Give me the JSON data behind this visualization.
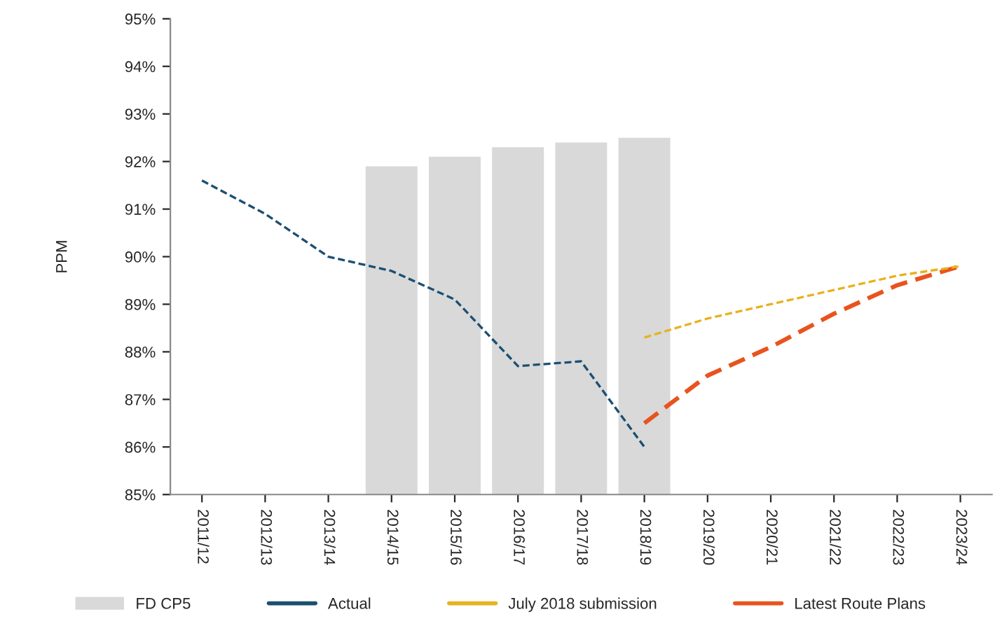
{
  "chart_data": {
    "type": "bar",
    "ylabel": "PPM",
    "categories": [
      "2011/12",
      "2012/13",
      "2013/14",
      "2014/15",
      "2015/16",
      "2016/17",
      "2017/18",
      "2018/19",
      "2019/20",
      "2020/21",
      "2021/22",
      "2022/23",
      "2023/24"
    ],
    "series": [
      {
        "name": "FD CP5",
        "color": "#d9d9d9",
        "values": [
          null,
          null,
          null,
          91.9,
          92.1,
          92.3,
          92.4,
          92.5,
          null,
          null,
          null,
          null,
          null
        ]
      },
      {
        "name": "Actual",
        "type": "line",
        "color": "#1b4f72",
        "line_style": "dashed",
        "values": [
          91.6,
          90.9,
          90.0,
          89.7,
          89.1,
          87.7,
          87.8,
          86.0,
          null,
          null,
          null,
          null,
          null
        ]
      },
      {
        "name": "July 2018 submission",
        "type": "line",
        "color": "#e8b21e",
        "line_style": "dashed",
        "values": [
          null,
          null,
          null,
          null,
          null,
          null,
          null,
          88.3,
          88.7,
          89.0,
          89.3,
          89.6,
          89.8
        ]
      },
      {
        "name": "Latest Route Plans",
        "type": "line",
        "color": "#e8541e",
        "line_style": "dashed",
        "values": [
          null,
          null,
          null,
          null,
          null,
          null,
          null,
          86.5,
          87.5,
          88.1,
          88.8,
          89.4,
          89.8
        ]
      }
    ],
    "ylim": [
      85,
      95
    ],
    "yticks": [
      {
        "value": 85,
        "label": "85%"
      },
      {
        "value": 86,
        "label": "86%"
      },
      {
        "value": 87,
        "label": "87%"
      },
      {
        "value": 88,
        "label": "88%"
      },
      {
        "value": 89,
        "label": "89%"
      },
      {
        "value": 90,
        "label": "90%"
      },
      {
        "value": 91,
        "label": "91%"
      },
      {
        "value": 92,
        "label": "92%"
      },
      {
        "value": 93,
        "label": "93%"
      },
      {
        "value": 94,
        "label": "94%"
      },
      {
        "value": 95,
        "label": "95%"
      }
    ],
    "grid": false,
    "legend": "bottom"
  }
}
